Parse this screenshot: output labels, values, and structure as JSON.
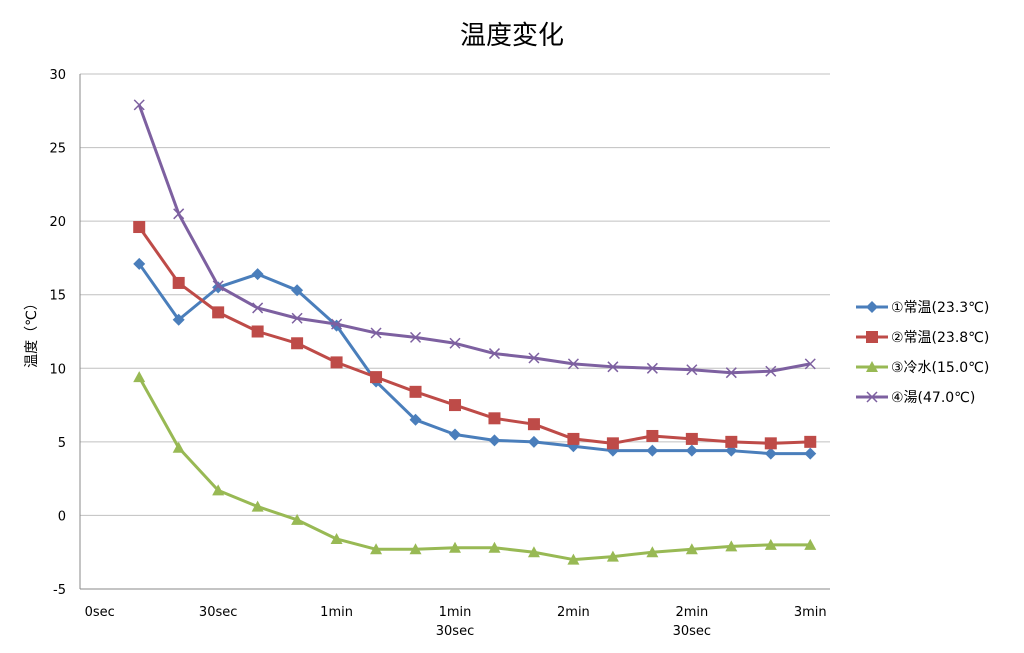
{
  "chart_data": {
    "type": "line",
    "title": "温度変化",
    "xlabel": "",
    "ylabel": "温度（℃）",
    "ylim": [
      -5,
      30
    ],
    "yticks": [
      30,
      25,
      20,
      15,
      10,
      5,
      0,
      -5
    ],
    "xlim_seconds": [
      -5,
      185
    ],
    "xticks": [
      {
        "x": 0,
        "label": [
          "0sec"
        ]
      },
      {
        "x": 30,
        "label": [
          "30sec"
        ]
      },
      {
        "x": 60,
        "label": [
          "1min"
        ]
      },
      {
        "x": 90,
        "label": [
          "1min",
          "30sec"
        ]
      },
      {
        "x": 120,
        "label": [
          "2min"
        ]
      },
      {
        "x": 150,
        "label": [
          "2min",
          "30sec"
        ]
      },
      {
        "x": 180,
        "label": [
          "3min"
        ]
      }
    ],
    "grid": "horizontal",
    "legend_position": "right",
    "x": [
      10,
      20,
      30,
      40,
      50,
      60,
      70,
      80,
      90,
      100,
      110,
      120,
      130,
      140,
      150,
      160,
      170,
      180
    ],
    "series": [
      {
        "name": "①常温(23.3℃)",
        "color": "#4a7ebb",
        "marker": "diamond",
        "values": [
          17.1,
          13.3,
          15.5,
          16.4,
          15.3,
          12.9,
          9.1,
          6.5,
          5.5,
          5.1,
          5.0,
          4.7,
          4.4,
          4.4,
          4.4,
          4.4,
          4.2,
          4.2
        ]
      },
      {
        "name": "②常温(23.8℃)",
        "color": "#be4b48",
        "marker": "square",
        "values": [
          19.6,
          15.8,
          13.8,
          12.5,
          11.7,
          10.4,
          9.4,
          8.4,
          7.5,
          6.6,
          6.2,
          5.2,
          4.9,
          5.4,
          5.2,
          5.0,
          4.9,
          5.0
        ]
      },
      {
        "name": "③冷水(15.0℃)",
        "color": "#98b954",
        "marker": "triangle",
        "values": [
          9.4,
          4.6,
          1.7,
          0.6,
          -0.3,
          -1.6,
          -2.3,
          -2.3,
          -2.2,
          -2.2,
          -2.5,
          -3.0,
          -2.8,
          -2.5,
          -2.3,
          -2.1,
          -2.0,
          -2.0
        ]
      },
      {
        "name": "④湯(47.0℃)",
        "color": "#7d60a0",
        "marker": "x",
        "values": [
          27.9,
          20.5,
          15.6,
          14.1,
          13.4,
          13.0,
          12.4,
          12.1,
          11.7,
          11.0,
          10.7,
          10.3,
          10.1,
          10.0,
          9.9,
          9.7,
          9.8,
          10.3
        ]
      }
    ]
  }
}
